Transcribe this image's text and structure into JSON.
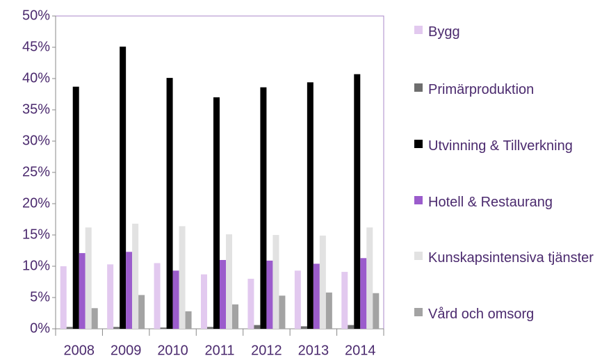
{
  "chart_data": {
    "type": "bar",
    "categories": [
      "2008",
      "2009",
      "2010",
      "2011",
      "2012",
      "2013",
      "2014"
    ],
    "series": [
      {
        "name": "Bygg",
        "color": "#e2c9ef",
        "values": [
          10.0,
          10.3,
          10.5,
          8.7,
          8.0,
          9.3,
          9.1
        ]
      },
      {
        "name": "Primärproduktion",
        "color": "#6e6e6e",
        "values": [
          0.3,
          0.3,
          0.2,
          0.3,
          0.6,
          0.4,
          0.6
        ]
      },
      {
        "name": "Utvinning & Tillverkning",
        "color": "#000000",
        "values": [
          38.7,
          45.1,
          40.1,
          37.0,
          38.6,
          39.4,
          40.7
        ]
      },
      {
        "name": "Hotell & Restaurang",
        "color": "#9b5ccc",
        "values": [
          12.1,
          12.3,
          9.3,
          11.0,
          10.9,
          10.4,
          11.3
        ]
      },
      {
        "name": "Kunskapsintensiva tjänster",
        "color": "#e2e2e2",
        "values": [
          16.2,
          16.8,
          16.4,
          15.1,
          15.0,
          14.9,
          16.2
        ]
      },
      {
        "name": "Vård och omsorg",
        "color": "#a3a3a3",
        "values": [
          3.3,
          5.4,
          2.8,
          3.9,
          5.3,
          5.8,
          5.7
        ]
      }
    ],
    "ylim": [
      0,
      50
    ],
    "yticks": [
      {
        "value": 0,
        "label": "0%"
      },
      {
        "value": 5,
        "label": "5%"
      },
      {
        "value": 10,
        "label": "10%"
      },
      {
        "value": 15,
        "label": "15%"
      },
      {
        "value": 20,
        "label": "20%"
      },
      {
        "value": 25,
        "label": "25%"
      },
      {
        "value": 30,
        "label": "30%"
      },
      {
        "value": 35,
        "label": "35%"
      },
      {
        "value": 40,
        "label": "40%"
      },
      {
        "value": 45,
        "label": "45%"
      },
      {
        "value": 50,
        "label": "50%"
      }
    ],
    "grid": false,
    "legend": "right"
  }
}
